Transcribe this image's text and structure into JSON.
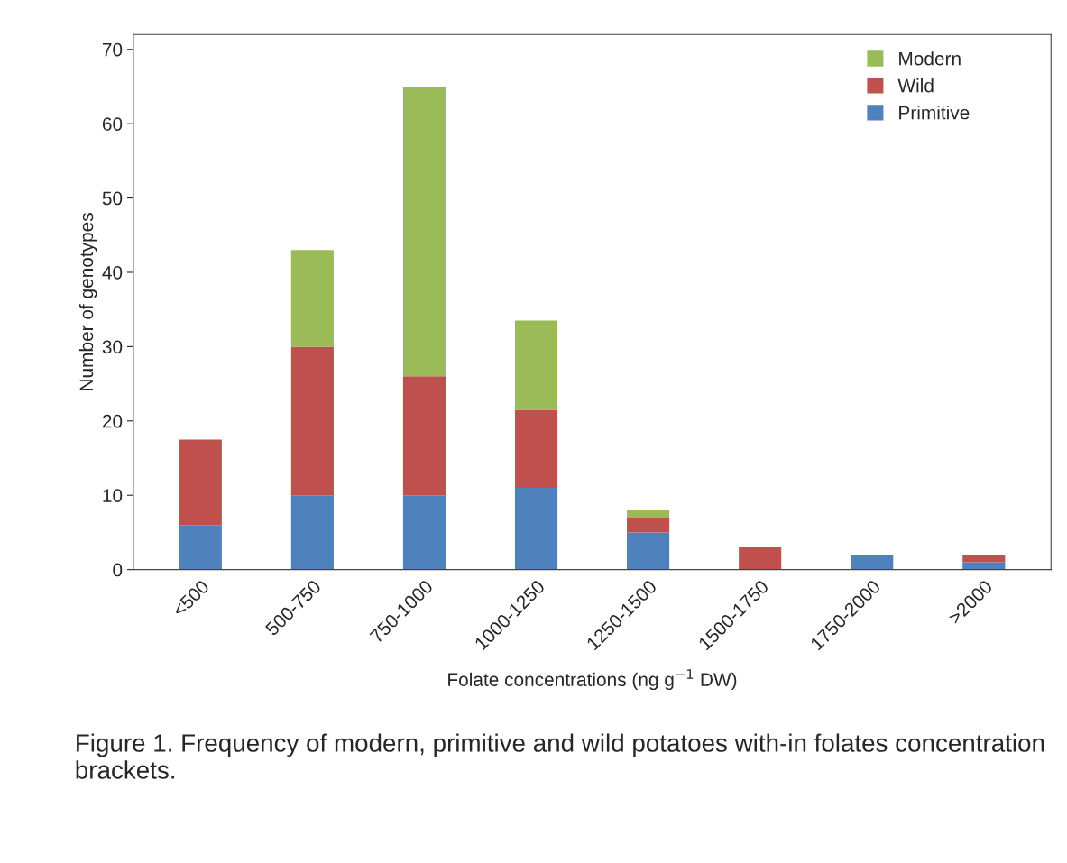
{
  "chart_data": {
    "type": "bar",
    "stacked": true,
    "categories": [
      "<500",
      "500-750",
      "750-1000",
      "1000-1250",
      "1250-1500",
      "1500-1750",
      "1750-2000",
      ">2000"
    ],
    "series": [
      {
        "name": "Primitive",
        "color": "#4f81bd",
        "values": [
          6,
          10,
          10,
          11,
          5,
          0,
          2,
          1
        ]
      },
      {
        "name": "Wild",
        "color": "#c0504d",
        "values": [
          11.5,
          20,
          16,
          10.5,
          2,
          3,
          0,
          1
        ]
      },
      {
        "name": "Modern",
        "color": "#9bbb59",
        "values": [
          0,
          13,
          39,
          12,
          1,
          0,
          0,
          0
        ]
      }
    ],
    "ylim": [
      0,
      72
    ],
    "yticks": [
      0,
      10,
      20,
      30,
      40,
      50,
      60,
      70
    ],
    "xlabel": "Folate concentrations (ng g$^{−1}$ DW)",
    "ylabel": "Number of genotypes",
    "legend": "top right",
    "grid": false,
    "annotations": [
      "Figure 1. Frequency of modern, primitive and wild potatoes with-in folates concentration brackets."
    ]
  }
}
